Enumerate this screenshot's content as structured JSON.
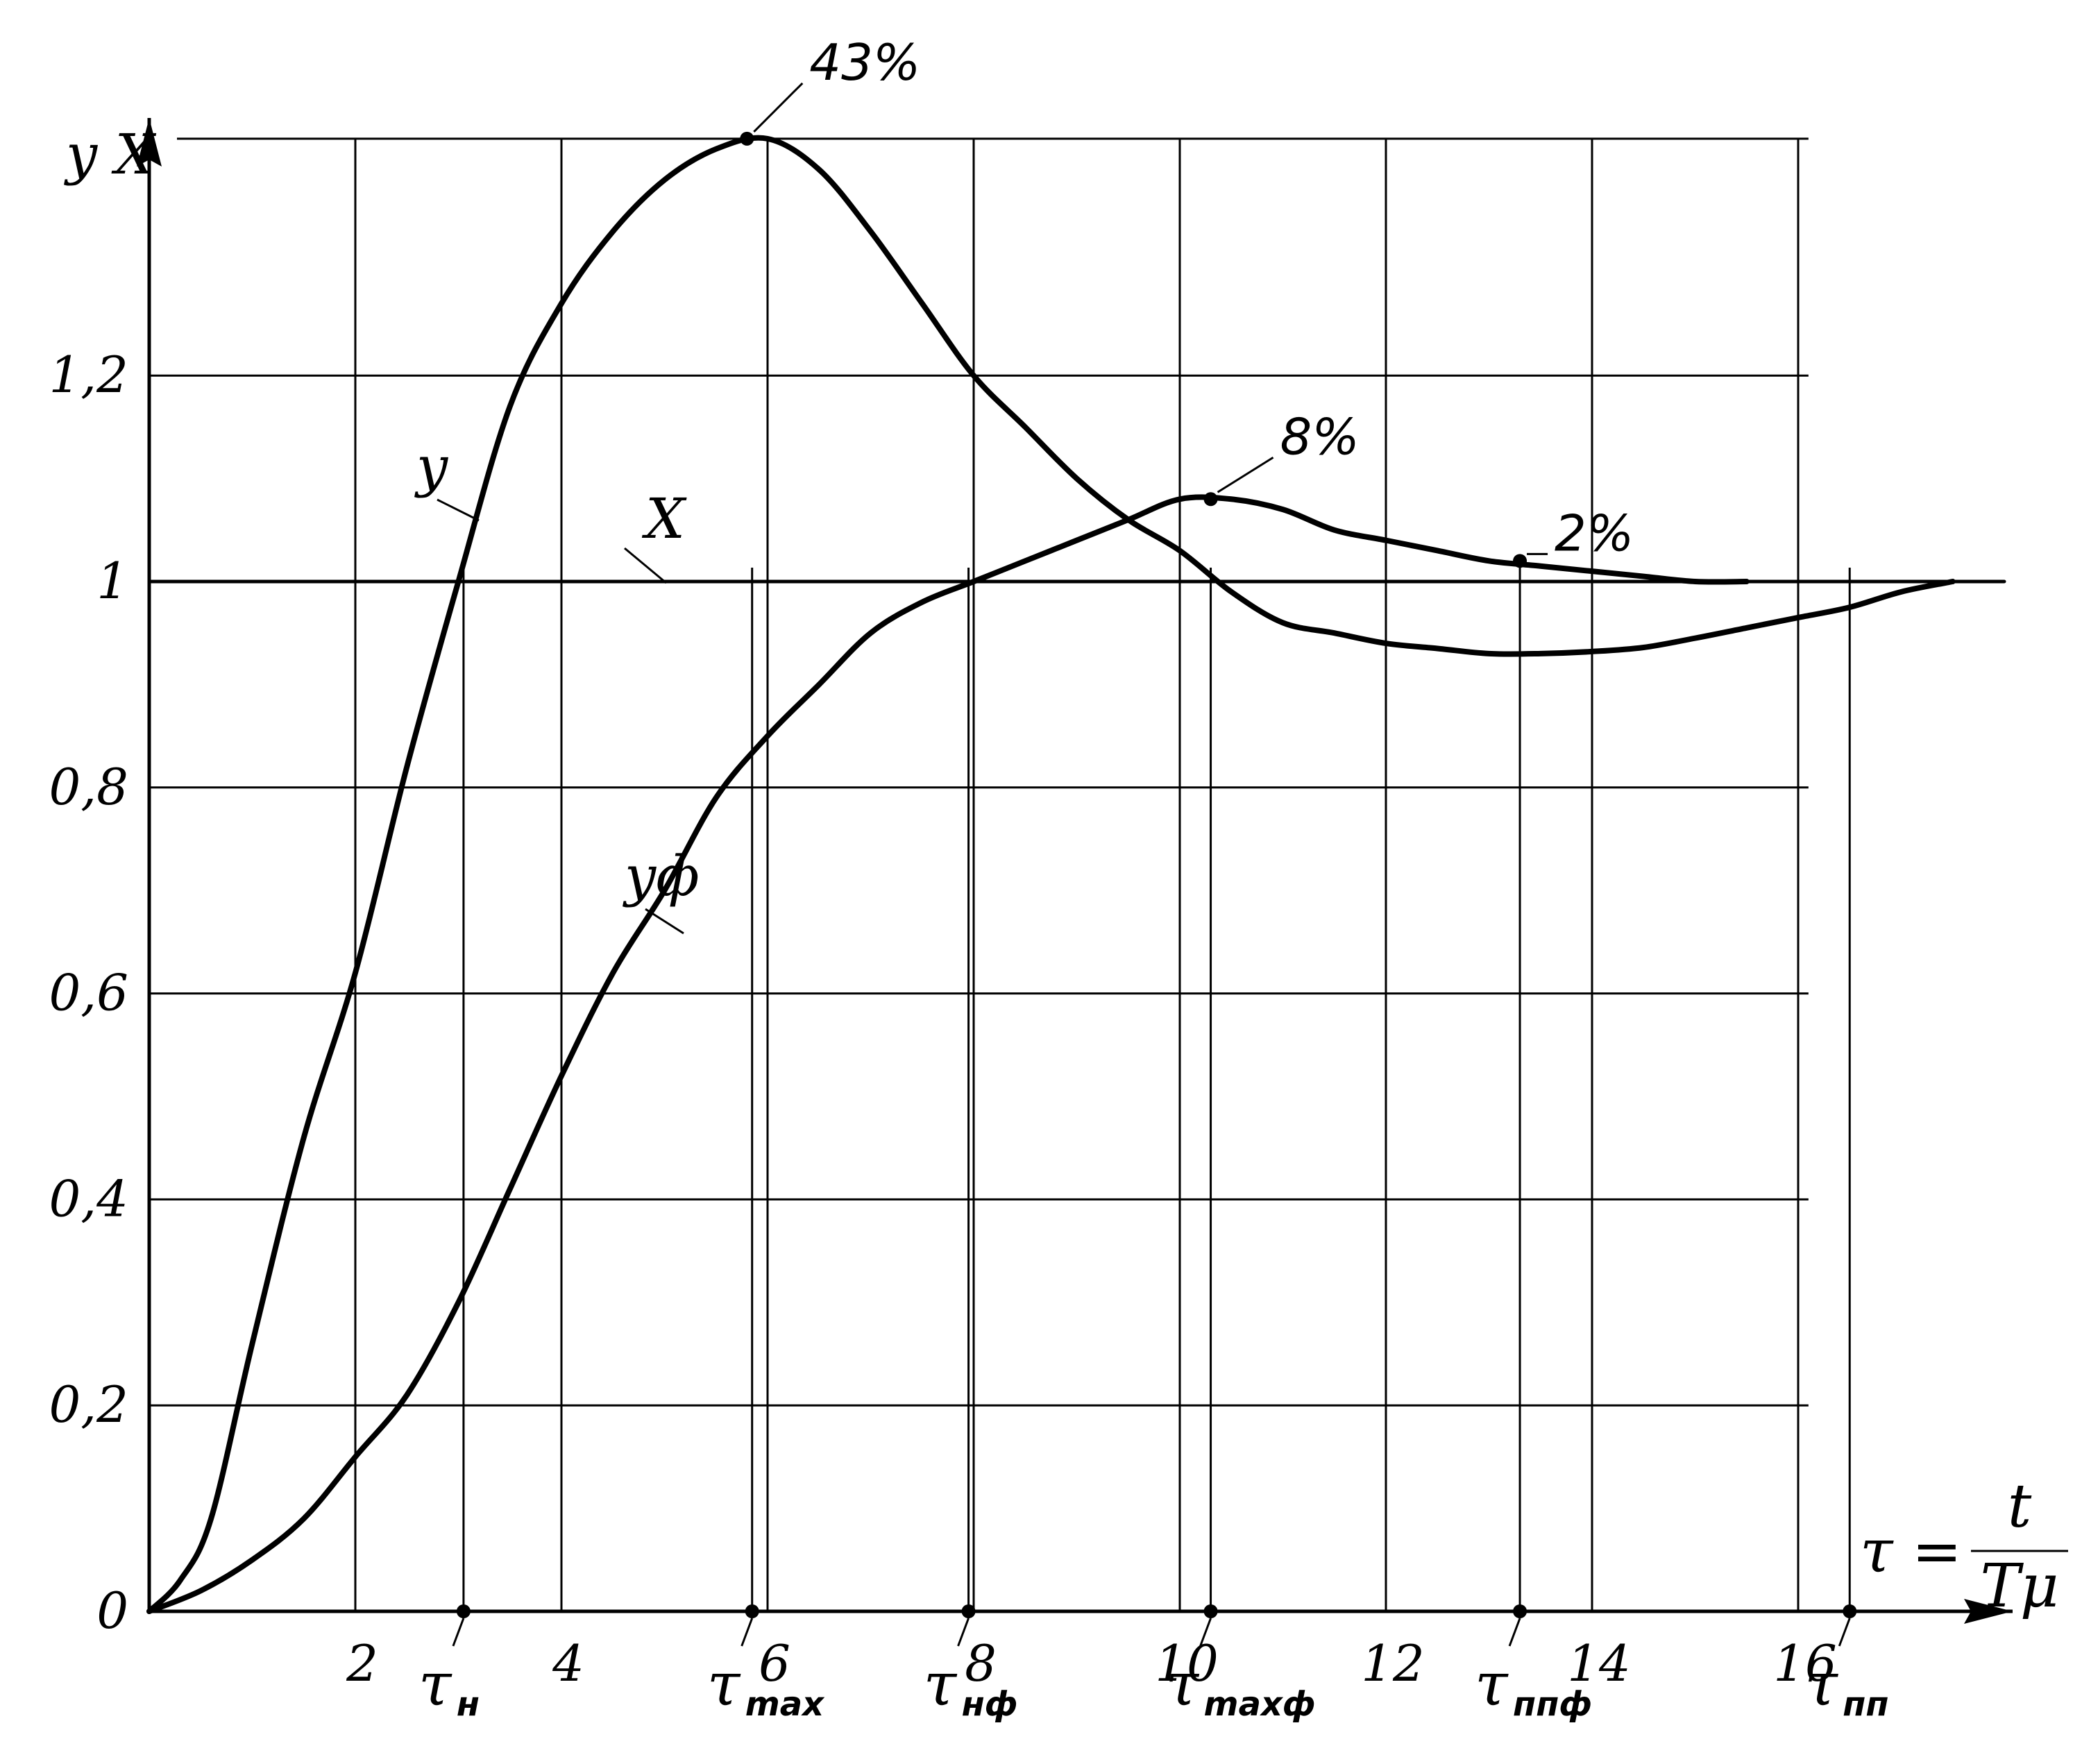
{
  "chart_data": {
    "type": "line",
    "y_axis_title": "y  X",
    "ylim": [
      0,
      1.43
    ],
    "xlim": [
      0,
      18
    ],
    "grid": true,
    "x_ticks": [
      {
        "value": 2,
        "label": "2"
      },
      {
        "value": 4,
        "label": "4"
      },
      {
        "value": 6,
        "label": "6"
      },
      {
        "value": 8,
        "label": "8"
      },
      {
        "value": 10,
        "label": "10"
      },
      {
        "value": 12,
        "label": "12"
      },
      {
        "value": 14,
        "label": "14"
      },
      {
        "value": 16,
        "label": "16"
      }
    ],
    "y_ticks": [
      {
        "value": 0,
        "label": "0"
      },
      {
        "value": 0.2,
        "label": "0,2"
      },
      {
        "value": 0.4,
        "label": "0,4"
      },
      {
        "value": 0.6,
        "label": "0,6"
      },
      {
        "value": 0.8,
        "label": "0,8"
      },
      {
        "value": 1,
        "label": "1"
      },
      {
        "value": 1.2,
        "label": "1,2"
      }
    ],
    "x_axis_formula": {
      "lhs": "τ =",
      "numerator": "t",
      "denominator": "Tμ"
    },
    "series": [
      {
        "name": "y",
        "x": [
          0,
          0.3,
          0.6,
          1.0,
          1.5,
          2.0,
          2.5,
          3.0,
          3.5,
          4.0,
          4.5,
          5.0,
          5.5,
          6.0,
          6.5,
          7.0,
          7.5,
          8.0,
          8.5,
          9.0,
          9.5,
          10.0,
          10.5,
          11.0,
          11.5,
          12.0,
          12.5,
          13.0,
          13.5,
          14.0,
          14.5,
          15.0,
          15.5,
          16.0,
          16.5,
          17.0,
          17.5
        ],
        "y": [
          0,
          0.03,
          0.09,
          0.26,
          0.46,
          0.62,
          0.82,
          1.0,
          1.17,
          1.27,
          1.34,
          1.39,
          1.42,
          1.43,
          1.4,
          1.34,
          1.27,
          1.2,
          1.15,
          1.1,
          1.06,
          1.03,
          0.99,
          0.96,
          0.95,
          0.94,
          0.935,
          0.93,
          0.93,
          0.932,
          0.936,
          0.945,
          0.955,
          0.965,
          0.975,
          0.99,
          1.0
        ]
      },
      {
        "name": "yф",
        "x": [
          0,
          0.5,
          1.0,
          1.5,
          2.0,
          2.5,
          3.0,
          3.5,
          4.0,
          4.5,
          5.0,
          5.5,
          6.0,
          6.5,
          7.0,
          7.5,
          8.0,
          8.5,
          9.0,
          9.5,
          10.0,
          10.5,
          11.0,
          11.5,
          12.0,
          12.5,
          13.0,
          13.5,
          14.0,
          14.5,
          15.0,
          15.5
        ],
        "y": [
          0,
          0.02,
          0.05,
          0.09,
          0.15,
          0.21,
          0.3,
          0.41,
          0.52,
          0.62,
          0.7,
          0.79,
          0.85,
          0.9,
          0.95,
          0.98,
          1.0,
          1.02,
          1.04,
          1.06,
          1.08,
          1.08,
          1.07,
          1.05,
          1.04,
          1.03,
          1.02,
          1.015,
          1.01,
          1.005,
          1.0,
          1.0
        ]
      },
      {
        "name": "X",
        "x": [
          0,
          18
        ],
        "y": [
          1,
          1
        ]
      }
    ],
    "annotations": [
      {
        "text": "43%",
        "x": 5.8,
        "y": 1.43
      },
      {
        "text": "8%",
        "x": 10.3,
        "y": 1.08
      },
      {
        "text": "2%",
        "x": 13.3,
        "y": 1.02
      }
    ],
    "marked_points": [
      {
        "name": "τн",
        "main": "τ",
        "sub": "н",
        "x": 3.05
      },
      {
        "name": "τmax",
        "main": "τ",
        "sub": "max",
        "x": 5.85
      },
      {
        "name": "τнф",
        "main": "τ",
        "sub": "нф",
        "x": 7.95
      },
      {
        "name": "τmaxф",
        "main": "τ",
        "sub": "maxф",
        "x": 10.3
      },
      {
        "name": "τппф",
        "main": "τ",
        "sub": "ппф",
        "x": 13.3
      },
      {
        "name": "τпп",
        "main": "τ",
        "sub": "пп",
        "x": 16.5
      }
    ]
  }
}
